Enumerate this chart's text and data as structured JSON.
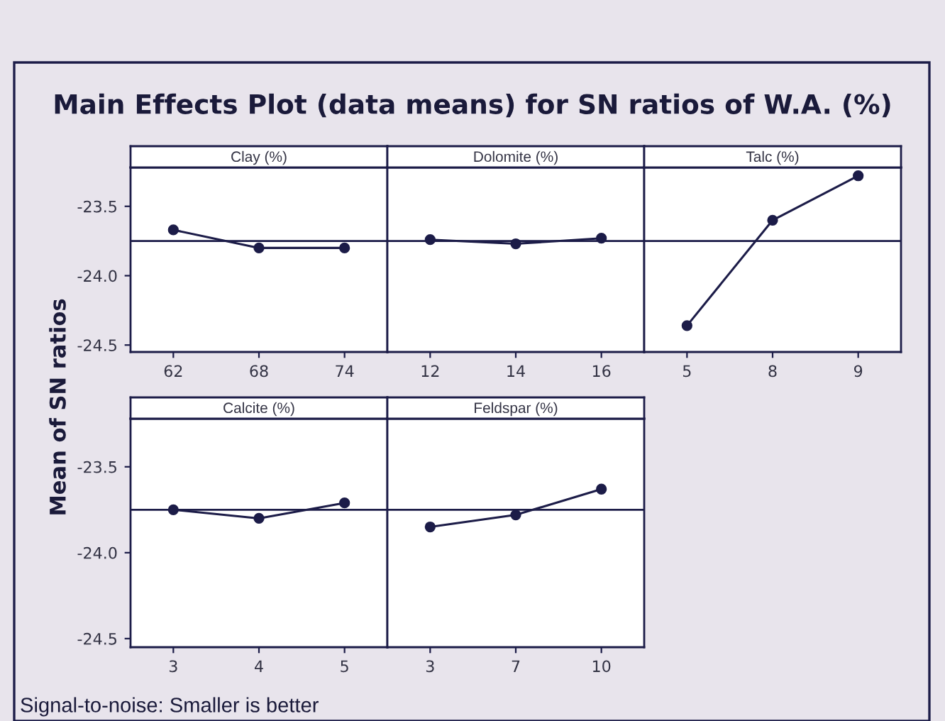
{
  "chart_data": [
    {
      "type": "line",
      "title": "Clay (%)",
      "ylabel": "Mean of SN ratios",
      "annotations": [
        "Main Effects Plot (data means) for SN ratios of W.A. (%)",
        "Signal-to-noise: Smaller is better"
      ],
      "categories": [
        "62",
        "68",
        "74"
      ],
      "series": [
        {
          "color": "#1c1c48",
          "values": [
            -23.67,
            -23.8,
            -23.8
          ]
        }
      ],
      "ylim": [
        -24.55,
        -23.22
      ],
      "yticks": [
        {
          "value": -23.5,
          "label": "-23.5"
        },
        {
          "value": -24.0,
          "label": "-24.0"
        },
        {
          "value": -24.5,
          "label": "-24.5"
        }
      ],
      "ref_lines": [
        {
          "axis": "y",
          "value": -23.75,
          "color": "#1c1c48"
        }
      ],
      "marker": "circle",
      "line_style": "solid",
      "grid": false,
      "legend": false
    },
    {
      "type": "line",
      "title": "Dolomite (%)",
      "categories": [
        "12",
        "14",
        "16"
      ],
      "series": [
        {
          "color": "#1c1c48",
          "values": [
            -23.74,
            -23.77,
            -23.73
          ]
        }
      ],
      "ylim": [
        -24.55,
        -23.22
      ],
      "ref_lines": [
        {
          "axis": "y",
          "value": -23.75,
          "color": "#1c1c48"
        }
      ],
      "marker": "circle",
      "line_style": "solid",
      "grid": false,
      "legend": false,
      "tick_labels": "x"
    },
    {
      "type": "line",
      "title": "Talc (%)",
      "categories": [
        "5",
        "8",
        "9"
      ],
      "series": [
        {
          "color": "#1c1c48",
          "values": [
            -24.36,
            -23.6,
            -23.28
          ]
        }
      ],
      "ylim": [
        -24.55,
        -23.22
      ],
      "ref_lines": [
        {
          "axis": "y",
          "value": -23.75,
          "color": "#1c1c48"
        }
      ],
      "marker": "circle",
      "line_style": "solid",
      "grid": false,
      "legend": false,
      "tick_labels": "x"
    },
    {
      "type": "line",
      "title": "Calcite (%)",
      "categories": [
        "3",
        "4",
        "5"
      ],
      "series": [
        {
          "color": "#1c1c48",
          "values": [
            -23.75,
            -23.8,
            -23.71
          ]
        }
      ],
      "ylim": [
        -24.55,
        -23.22
      ],
      "yticks": [
        {
          "value": -23.5,
          "label": "-23.5"
        },
        {
          "value": -24.0,
          "label": "-24.0"
        },
        {
          "value": -24.5,
          "label": "-24.5"
        }
      ],
      "ref_lines": [
        {
          "axis": "y",
          "value": -23.75,
          "color": "#1c1c48"
        }
      ],
      "marker": "circle",
      "line_style": "solid",
      "grid": false,
      "legend": false
    },
    {
      "type": "line",
      "title": "Feldspar (%)",
      "categories": [
        "3",
        "7",
        "10"
      ],
      "series": [
        {
          "color": "#1c1c48",
          "values": [
            -23.85,
            -23.78,
            -23.63
          ]
        }
      ],
      "ylim": [
        -24.55,
        -23.22
      ],
      "ref_lines": [
        {
          "axis": "y",
          "value": -23.75,
          "color": "#1c1c48"
        }
      ],
      "marker": "circle",
      "line_style": "solid",
      "grid": false,
      "legend": false,
      "tick_labels": "x"
    }
  ]
}
